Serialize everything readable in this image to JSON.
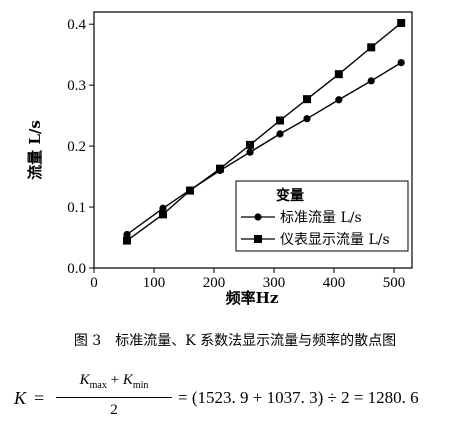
{
  "chart_data": {
    "type": "line",
    "x": [
      55,
      115,
      160,
      210,
      260,
      310,
      355,
      408,
      462,
      512
    ],
    "series": [
      {
        "name": "标准流量 L/s",
        "marker": "circle",
        "values": [
          0.055,
          0.098,
          0.128,
          0.16,
          0.19,
          0.22,
          0.245,
          0.276,
          0.307,
          0.337
        ]
      },
      {
        "name": "仪表显示流量 L/s",
        "marker": "square",
        "values": [
          0.045,
          0.088,
          0.127,
          0.163,
          0.202,
          0.242,
          0.277,
          0.318,
          0.362,
          0.402
        ]
      }
    ],
    "xlabel": "频率Hz",
    "ylabel": "流量 L/s",
    "xlim": [
      0,
      530
    ],
    "ylim": [
      0,
      0.42
    ],
    "xticks": [
      0,
      100,
      200,
      300,
      400,
      500
    ],
    "yticks": [
      0.0,
      0.1,
      0.2,
      0.3,
      0.4
    ],
    "ytick_labels": [
      "0.0",
      "0.1",
      "0.2",
      "0.3",
      "0.4"
    ],
    "legend_title": "变量",
    "legend_position": "bottom-right",
    "grid": false
  },
  "caption": "图 3　标准流量、K 系数法显示流量与频率的散点图",
  "formula": {
    "lhs": "K",
    "eq": "=",
    "num_k1": "K",
    "num_sub1": "max",
    "num_plus": " + ",
    "num_k2": "K",
    "num_sub2": "min",
    "den": "2",
    "rest": "= (1523. 9 + 1037. 3) ÷ 2 = 1280. 6"
  }
}
